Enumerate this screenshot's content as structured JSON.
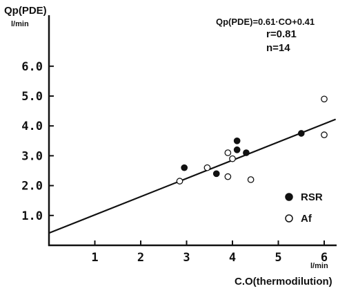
{
  "chart_data": {
    "type": "scatter",
    "y_axis_title": "Qp(PDE)",
    "y_unit": "l/min",
    "x_axis_title": "C.O(thermodilution)",
    "x_unit": "l/min",
    "x_ticks": [
      "1",
      "2",
      "3",
      "4",
      "5",
      "6"
    ],
    "y_ticks": [
      "1.0",
      "2.0",
      "3.0",
      "4.0",
      "5.0",
      "6.0"
    ],
    "xlim": [
      0,
      6.25
    ],
    "ylim": [
      0,
      7.3
    ],
    "annotations": {
      "equation": "Qp(PDE)=0.61·CO+0.41",
      "r": "r=0.81",
      "n": "n=14"
    },
    "regression": {
      "slope": 0.61,
      "intercept": 0.41,
      "x_range": [
        0,
        6.25
      ]
    },
    "legend_position": "bottom-right",
    "series": [
      {
        "name": "RSR",
        "marker": "filled-circle",
        "points": [
          [
            2.95,
            2.6
          ],
          [
            3.65,
            2.4
          ],
          [
            4.1,
            3.5
          ],
          [
            4.1,
            3.2
          ],
          [
            4.3,
            3.1
          ],
          [
            5.5,
            3.75
          ]
        ]
      },
      {
        "name": "Af",
        "marker": "open-circle",
        "points": [
          [
            2.85,
            2.15
          ],
          [
            3.45,
            2.6
          ],
          [
            3.9,
            3.1
          ],
          [
            3.9,
            2.3
          ],
          [
            4.0,
            2.9
          ],
          [
            4.4,
            2.2
          ],
          [
            6.0,
            4.9
          ],
          [
            6.0,
            3.7
          ]
        ]
      }
    ]
  }
}
